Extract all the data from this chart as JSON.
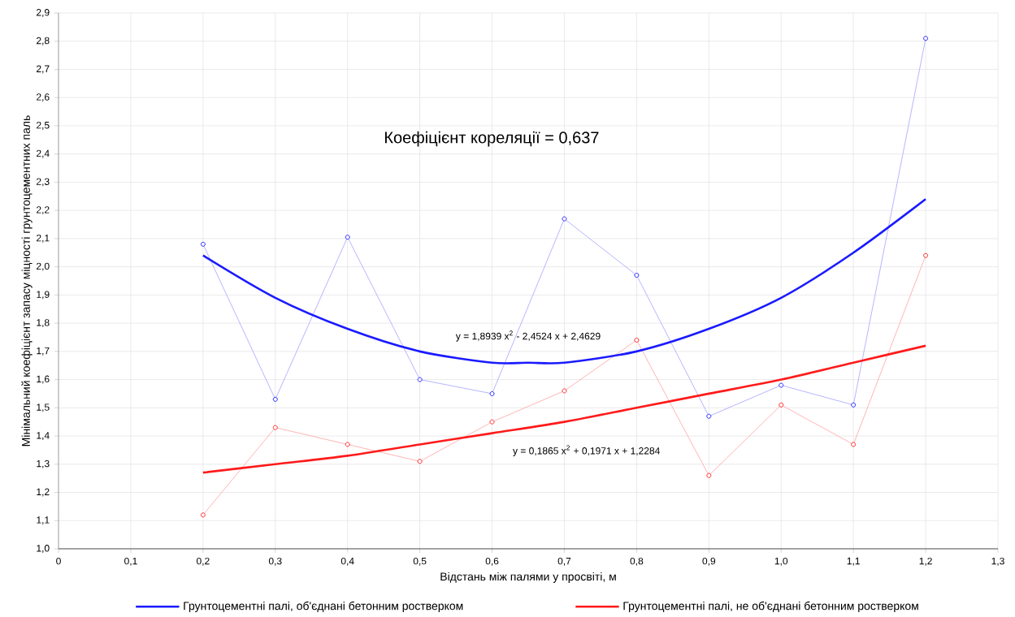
{
  "chart_data": {
    "type": "line",
    "xlabel": "Відстань між палями у просвіті, м",
    "ylabel": "Мінімальний коефіцієнт запасу міцності грунтоцементних паль",
    "annotations": [
      "Коефіцієнт кореляції = 0,637",
      "y = 1,8939 x$^{2}$ - 2,4524 x + 2,4629",
      "y = 0,1865 x$^{2}$ + 0,1971 x + 1,2284"
    ],
    "x": [
      0.2,
      0.3,
      0.4,
      0.5,
      0.6,
      0.7,
      0.8,
      0.9,
      1.0,
      1.1,
      1.2
    ],
    "series": [
      {
        "color": "#0000ff",
        "values": [
          2.08,
          1.53,
          2.105,
          1.6,
          1.55,
          2.17,
          1.97,
          1.47,
          1.58,
          1.51,
          2.81
        ]
      },
      {
        "color": "#ff0000",
        "values": [
          1.12,
          1.43,
          1.37,
          1.31,
          1.45,
          1.56,
          1.74,
          1.26,
          1.51,
          1.37,
          2.04
        ]
      },
      {
        "name": "Грунтоцементні палі, об'єднані бетонним ростверком",
        "color": "#1a1aff",
        "marker": "none",
        "x": [
          0.2,
          0.3,
          0.4,
          0.5,
          0.6,
          0.65,
          0.7,
          0.8,
          0.9,
          1.0,
          1.1,
          1.2
        ],
        "values": [
          2.04,
          1.89,
          1.78,
          1.7,
          1.66,
          1.66,
          1.66,
          1.7,
          1.78,
          1.89,
          2.05,
          2.24
        ]
      },
      {
        "name": "Грунтоцементні палі, не об'єднані бетонним ростверком",
        "color": "#ff1a1a",
        "marker": "none",
        "x": [
          0.2,
          0.3,
          0.4,
          0.5,
          0.6,
          0.7,
          0.8,
          0.9,
          1.0,
          1.1,
          1.2
        ],
        "values": [
          1.27,
          1.3,
          1.33,
          1.37,
          1.41,
          1.45,
          1.5,
          1.55,
          1.6,
          1.66,
          1.72
        ]
      }
    ],
    "xlim": [
      0,
      1.3
    ],
    "xticks": [
      {
        "value": 0,
        "label": "0"
      },
      {
        "value": 0.1,
        "label": "0,1"
      },
      {
        "value": 0.2,
        "label": "0,2"
      },
      {
        "value": 0.3,
        "label": "0,3"
      },
      {
        "value": 0.4,
        "label": "0,4"
      },
      {
        "value": 0.5,
        "label": "0,5"
      },
      {
        "value": 0.6,
        "label": "0,6"
      },
      {
        "value": 0.7,
        "label": "0,7"
      },
      {
        "value": 0.8,
        "label": "0,8"
      },
      {
        "value": 0.9,
        "label": "0,9"
      },
      {
        "value": 1.0,
        "label": "1,0"
      },
      {
        "value": 1.1,
        "label": "1,1"
      },
      {
        "value": 1.2,
        "label": "1,2"
      },
      {
        "value": 1.3,
        "label": "1,3"
      }
    ],
    "ylim": [
      1.0,
      2.9
    ],
    "yticks": [
      {
        "value": 1.0,
        "label": "1,0"
      },
      {
        "value": 1.1,
        "label": "1,1"
      },
      {
        "value": 1.2,
        "label": "1,2"
      },
      {
        "value": 1.3,
        "label": "1,3"
      },
      {
        "value": 1.4,
        "label": "1,4"
      },
      {
        "value": 1.5,
        "label": "1,5"
      },
      {
        "value": 1.6,
        "label": "1,6"
      },
      {
        "value": 1.7,
        "label": "1,7"
      },
      {
        "value": 1.8,
        "label": "1,8"
      },
      {
        "value": 1.9,
        "label": "1,9"
      },
      {
        "value": 2.0,
        "label": "2,0"
      },
      {
        "value": 2.1,
        "label": "2,1"
      },
      {
        "value": 2.2,
        "label": "2,2"
      },
      {
        "value": 2.3,
        "label": "2,3"
      },
      {
        "value": 2.4,
        "label": "2,4"
      },
      {
        "value": 2.5,
        "label": "2,5"
      },
      {
        "value": 2.6,
        "label": "2,6"
      },
      {
        "value": 2.7,
        "label": "2,7"
      },
      {
        "value": 2.8,
        "label": "2,8"
      },
      {
        "value": 2.9,
        "label": "2,9"
      }
    ],
    "grid": true,
    "legend": "bottom",
    "marker": "circle",
    "line_style": "solid"
  }
}
